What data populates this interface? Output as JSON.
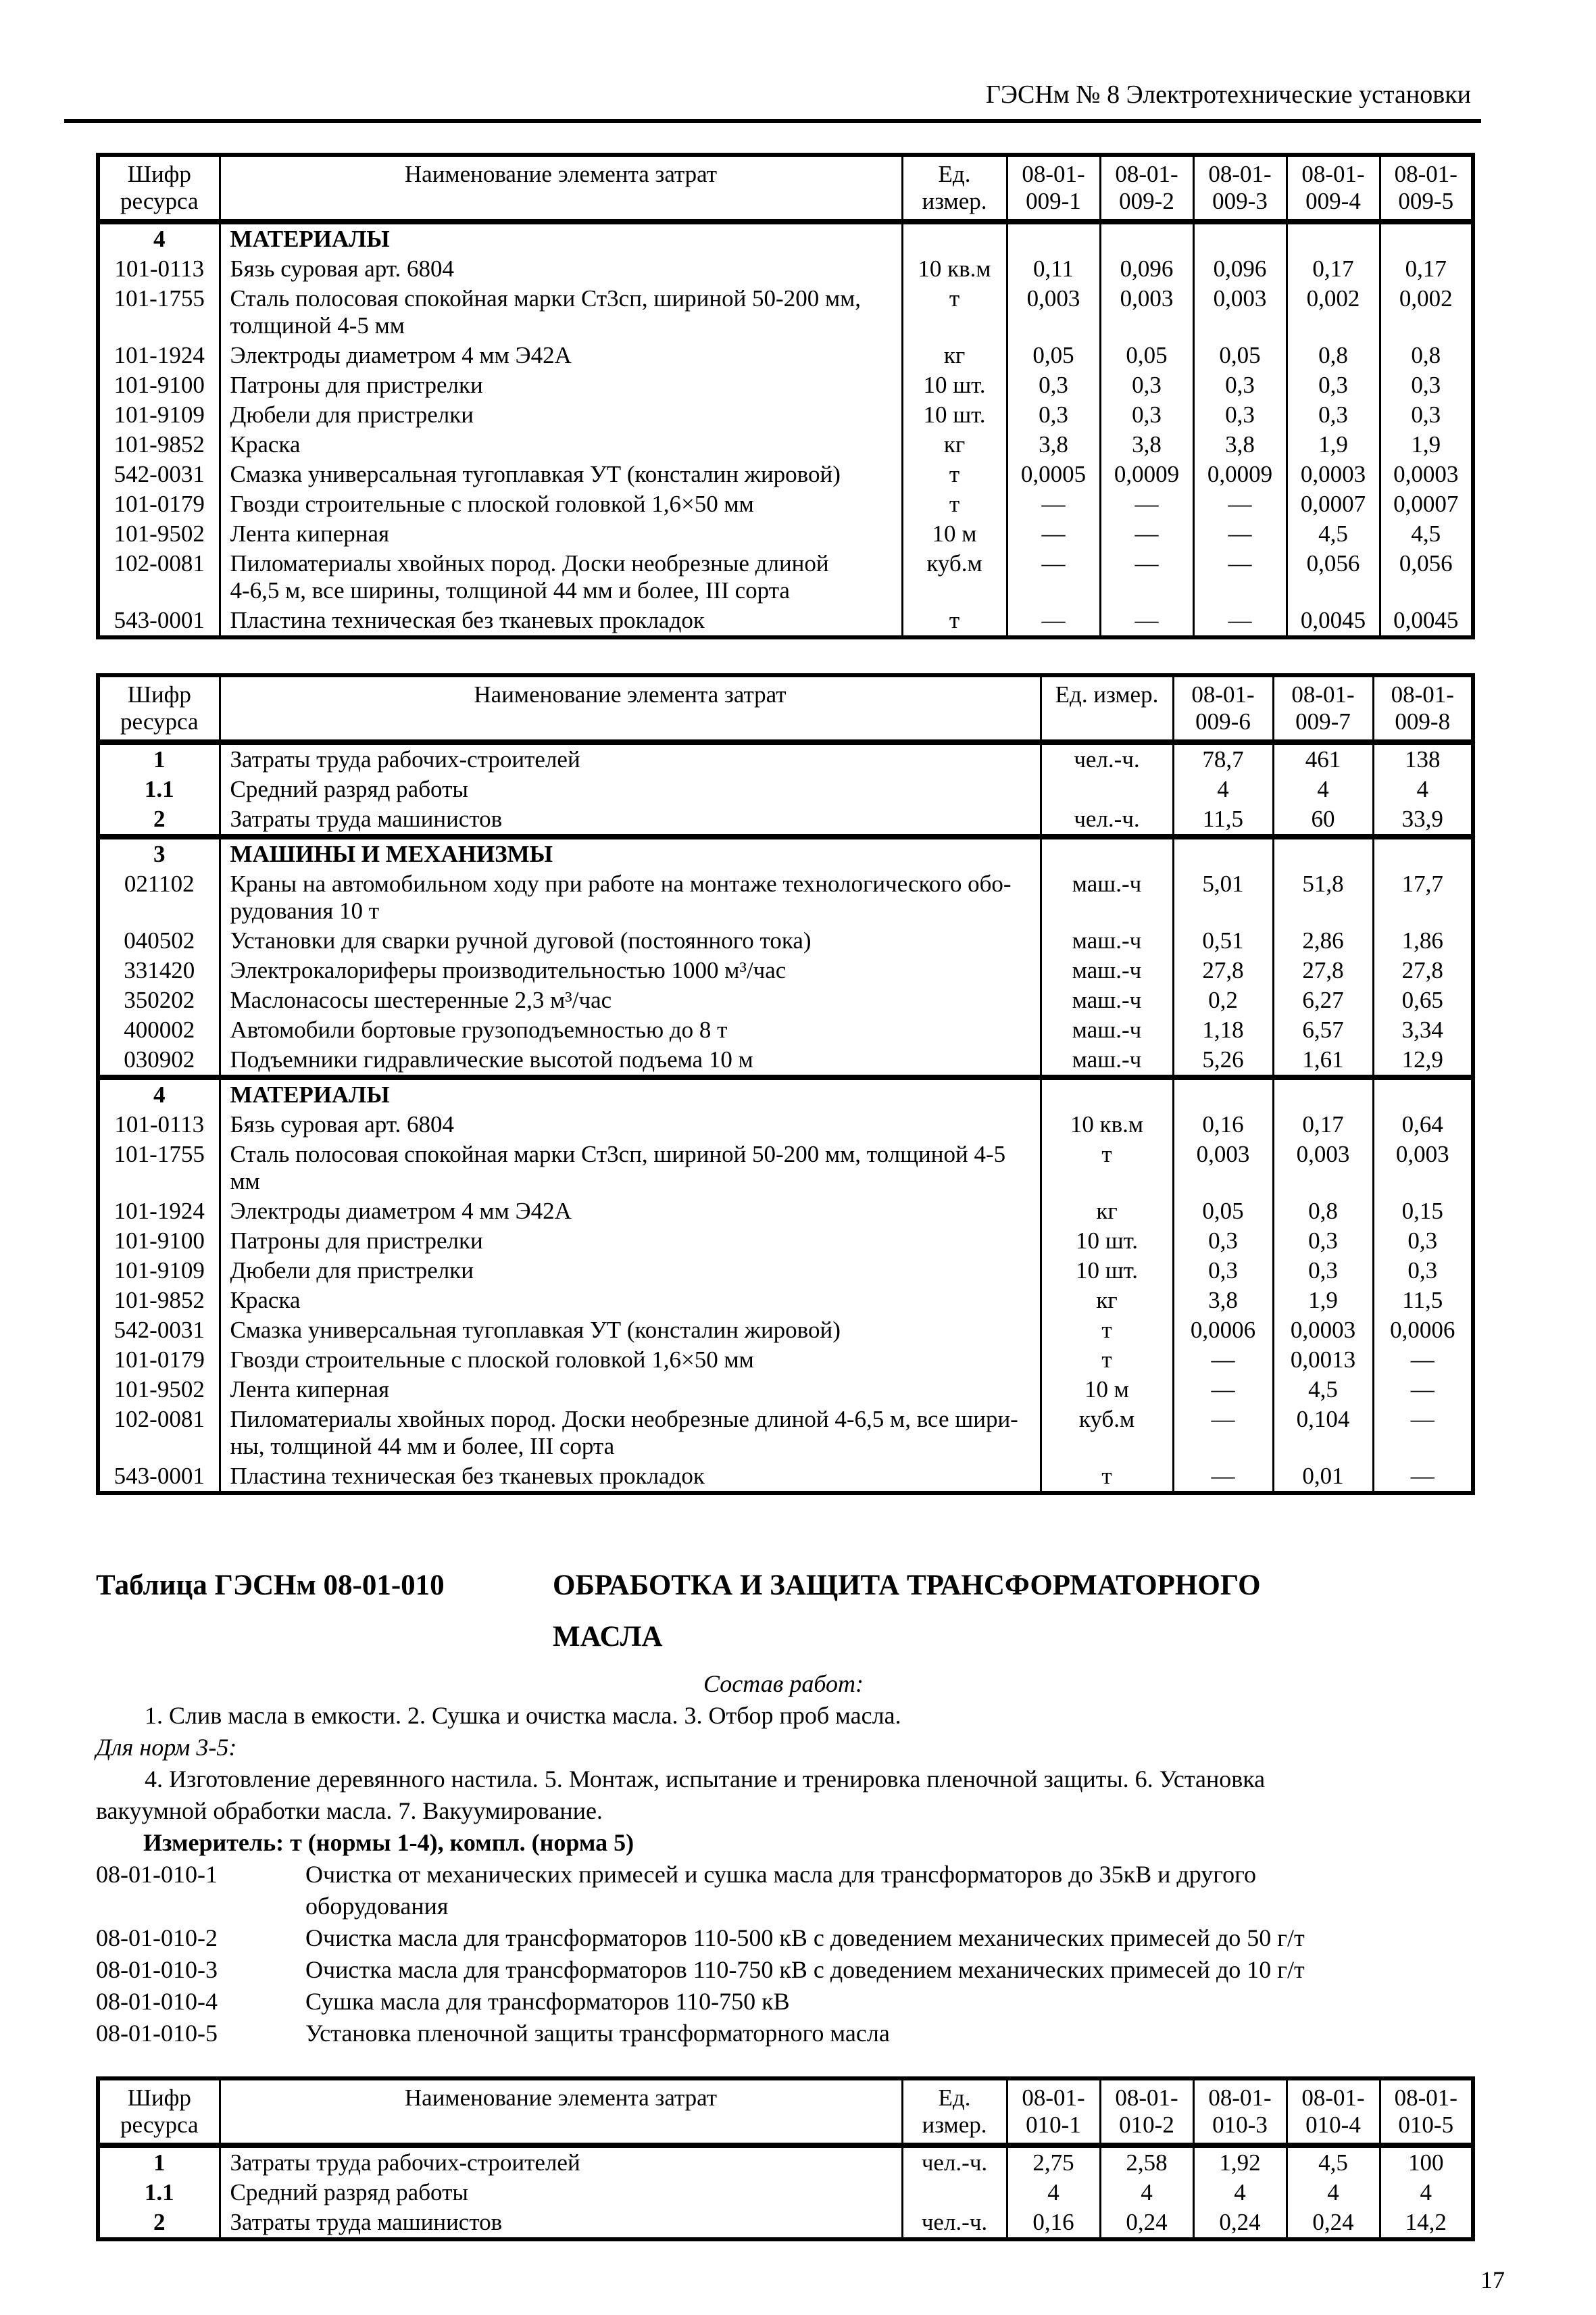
{
  "colors": {
    "ink": "#000000",
    "paper": "#ffffff"
  },
  "header": {
    "title": "ГЭСНм № 8 Электротехнические установки"
  },
  "page_number": "17",
  "tables": [
    {
      "head": {
        "code": "Шифр\nресурса",
        "name": "Наименование элемента затрат",
        "unit": "Ед. измер.",
        "norms": [
          "08-01-\n009-1",
          "08-01-\n009-2",
          "08-01-\n009-3",
          "08-01-\n009-4",
          "08-01-\n009-5"
        ]
      },
      "rows": [
        {
          "section": true,
          "code": "4",
          "name": "МАТЕРИАЛЫ"
        },
        {
          "code": "101-0113",
          "name": "Бязь суровая арт. 6804",
          "unit": "10 кв.м",
          "values": [
            "0,11",
            "0,096",
            "0,096",
            "0,17",
            "0,17"
          ]
        },
        {
          "code": "101-1755",
          "name": "Сталь полосовая спокойная марки Ст3сп, шириной 50-200 мм,\nтолщиной 4-5 мм",
          "unit": "т",
          "values": [
            "0,003",
            "0,003",
            "0,003",
            "0,002",
            "0,002"
          ]
        },
        {
          "code": "101-1924",
          "name": "Электроды диаметром 4 мм Э42А",
          "unit": "кг",
          "values": [
            "0,05",
            "0,05",
            "0,05",
            "0,8",
            "0,8"
          ]
        },
        {
          "code": "101-9100",
          "name": "Патроны для пристрелки",
          "unit": "10 шт.",
          "values": [
            "0,3",
            "0,3",
            "0,3",
            "0,3",
            "0,3"
          ]
        },
        {
          "code": "101-9109",
          "name": "Дюбели для пристрелки",
          "unit": "10 шт.",
          "values": [
            "0,3",
            "0,3",
            "0,3",
            "0,3",
            "0,3"
          ]
        },
        {
          "code": "101-9852",
          "name": "Краска",
          "unit": "кг",
          "values": [
            "3,8",
            "3,8",
            "3,8",
            "1,9",
            "1,9"
          ]
        },
        {
          "code": "542-0031",
          "name": "Смазка универсальная тугоплавкая УТ (консталин жировой)",
          "unit": "т",
          "values": [
            "0,0005",
            "0,0009",
            "0,0009",
            "0,0003",
            "0,0003"
          ]
        },
        {
          "code": "101-0179",
          "name": "Гвозди строительные с плоской головкой 1,6×50 мм",
          "unit": "т",
          "values": [
            "—",
            "—",
            "—",
            "0,0007",
            "0,0007"
          ]
        },
        {
          "code": "101-9502",
          "name": "Лента киперная",
          "unit": "10 м",
          "values": [
            "—",
            "—",
            "—",
            "4,5",
            "4,5"
          ]
        },
        {
          "code": "102-0081",
          "name": "Пиломатериалы хвойных пород. Доски необрезные длиной\n4-6,5 м, все ширины, толщиной 44 мм и более, III сорта",
          "unit": "куб.м",
          "values": [
            "—",
            "—",
            "—",
            "0,056",
            "0,056"
          ]
        },
        {
          "code": "543-0001",
          "name": "Пластина техническая без тканевых прокладок",
          "unit": "т",
          "values": [
            "—",
            "—",
            "—",
            "0,0045",
            "0,0045"
          ]
        }
      ]
    },
    {
      "head": {
        "code": "Шифр\nресурса",
        "name": "Наименование элемента затрат",
        "unit": "Ед. измер.",
        "norms": [
          "08-01-\n009-6",
          "08-01-\n009-7",
          "08-01-\n009-8"
        ]
      },
      "rows": [
        {
          "bold": true,
          "code": "1",
          "name": "Затраты труда рабочих-строителей",
          "unit": "чел.-ч.",
          "values": [
            "78,7",
            "461",
            "138"
          ]
        },
        {
          "bold": true,
          "code": "1.1",
          "name": "Средний разряд работы",
          "unit": "",
          "values": [
            "4",
            "4",
            "4"
          ]
        },
        {
          "bold": true,
          "code": "2",
          "name": "Затраты труда машинистов",
          "unit": "чел.-ч.",
          "values": [
            "11,5",
            "60",
            "33,9"
          ]
        },
        {
          "section": true,
          "sep": true,
          "code": "3",
          "name": "МАШИНЫ И МЕХАНИЗМЫ"
        },
        {
          "code": "021102",
          "name": "Краны на автомобильном ходу при работе на монтаже технологического обо-\nрудования 10 т",
          "unit": "маш.-ч",
          "values": [
            "5,01",
            "51,8",
            "17,7"
          ]
        },
        {
          "code": "040502",
          "name": "Установки для сварки ручной дуговой (постоянного тока)",
          "unit": "маш.-ч",
          "values": [
            "0,51",
            "2,86",
            "1,86"
          ]
        },
        {
          "code": "331420",
          "name": "Электрокалориферы производительностью 1000 м³/час",
          "unit": "маш.-ч",
          "values": [
            "27,8",
            "27,8",
            "27,8"
          ]
        },
        {
          "code": "350202",
          "name": "Маслонасосы шестеренные 2,3 м³/час",
          "unit": "маш.-ч",
          "values": [
            "0,2",
            "6,27",
            "0,65"
          ]
        },
        {
          "code": "400002",
          "name": "Автомобили бортовые грузоподъемностью до 8 т",
          "unit": "маш.-ч",
          "values": [
            "1,18",
            "6,57",
            "3,34"
          ]
        },
        {
          "code": "030902",
          "name": "Подъемники гидравлические высотой подъема 10 м",
          "unit": "маш.-ч",
          "values": [
            "5,26",
            "1,61",
            "12,9"
          ]
        },
        {
          "section": true,
          "sep": true,
          "code": "4",
          "name": "МАТЕРИАЛЫ"
        },
        {
          "code": "101-0113",
          "name": "Бязь суровая арт. 6804",
          "unit": "10 кв.м",
          "values": [
            "0,16",
            "0,17",
            "0,64"
          ]
        },
        {
          "code": "101-1755",
          "name": "Сталь полосовая спокойная марки Ст3сп, шириной 50-200 мм, толщиной 4-5 мм",
          "unit": "т",
          "values": [
            "0,003",
            "0,003",
            "0,003"
          ]
        },
        {
          "code": "101-1924",
          "name": "Электроды диаметром 4 мм Э42А",
          "unit": "кг",
          "values": [
            "0,05",
            "0,8",
            "0,15"
          ]
        },
        {
          "code": "101-9100",
          "name": "Патроны для пристрелки",
          "unit": "10 шт.",
          "values": [
            "0,3",
            "0,3",
            "0,3"
          ]
        },
        {
          "code": "101-9109",
          "name": "Дюбели для пристрелки",
          "unit": "10 шт.",
          "values": [
            "0,3",
            "0,3",
            "0,3"
          ]
        },
        {
          "code": "101-9852",
          "name": "Краска",
          "unit": "кг",
          "values": [
            "3,8",
            "1,9",
            "11,5"
          ]
        },
        {
          "code": "542-0031",
          "name": "Смазка универсальная тугоплавкая УТ (консталин жировой)",
          "unit": "т",
          "values": [
            "0,0006",
            "0,0003",
            "0,0006"
          ]
        },
        {
          "code": "101-0179",
          "name": "Гвозди строительные с плоской головкой 1,6×50 мм",
          "unit": "т",
          "values": [
            "—",
            "0,0013",
            "—"
          ]
        },
        {
          "code": "101-9502",
          "name": "Лента киперная",
          "unit": "10 м",
          "values": [
            "—",
            "4,5",
            "—"
          ]
        },
        {
          "code": "102-0081",
          "name": "Пиломатериалы хвойных пород. Доски необрезные длиной 4-6,5 м, все шири-\nны, толщиной 44 мм и более, III сорта",
          "unit": "куб.м",
          "values": [
            "—",
            "0,104",
            "—"
          ]
        },
        {
          "code": "543-0001",
          "name": "Пластина техническая без тканевых прокладок",
          "unit": "т",
          "values": [
            "—",
            "0,01",
            "—"
          ]
        }
      ]
    },
    {
      "head": {
        "code": "Шифр\nресурса",
        "name": "Наименование элемента затрат",
        "unit": "Ед. измер.",
        "norms": [
          "08-01-\n010-1",
          "08-01-\n010-2",
          "08-01-\n010-3",
          "08-01-\n010-4",
          "08-01-\n010-5"
        ]
      },
      "rows": [
        {
          "bold": true,
          "code": "1",
          "name": "Затраты труда рабочих-строителей",
          "unit": "чел.-ч.",
          "values": [
            "2,75",
            "2,58",
            "1,92",
            "4,5",
            "100"
          ]
        },
        {
          "bold": true,
          "code": "1.1",
          "name": "Средний разряд работы",
          "unit": "",
          "values": [
            "4",
            "4",
            "4",
            "4",
            "4"
          ]
        },
        {
          "bold": true,
          "code": "2",
          "name": "Затраты труда машинистов",
          "unit": "чел.-ч.",
          "values": [
            "0,16",
            "0,24",
            "0,24",
            "0,24",
            "14,2"
          ]
        }
      ]
    }
  ],
  "section_010": {
    "label": "Таблица ГЭСНм 08-01-010",
    "title_line1": "ОБРАБОТКА И ЗАЩИТА ТРАНСФОРМАТОРНОГО",
    "title_line2": "МАСЛА",
    "sostav_heading": "Состав работ:",
    "sostav_line": "1. Слив масла в емкости. 2. Сушка и очистка масла. 3. Отбор проб масла.",
    "for_norms_label": "Для норм 3-5:",
    "for_norms_text": "4. Изготовление деревянного настила. 5. Монтаж, испытание и тренировка пленочной защиты. 6. Установка\nвакуумной обработки масла. 7. Вакуумирование.",
    "measurer": "Измеритель: т (нормы 1-4), компл. (норма 5)",
    "norm_defs": [
      {
        "code": "08-01-010-1",
        "text": "Очистка от механических примесей и сушка масла для трансформаторов до 35кВ и другого\nоборудования"
      },
      {
        "code": "08-01-010-2",
        "text": "Очистка масла для трансформаторов 110-500 кВ с доведением механических примесей до 50 г/т"
      },
      {
        "code": "08-01-010-3",
        "text": "Очистка масла для трансформаторов 110-750 кВ с доведением механических примесей до 10 г/т"
      },
      {
        "code": "08-01-010-4",
        "text": "Сушка масла для трансформаторов 110-750 кВ"
      },
      {
        "code": "08-01-010-5",
        "text": "Установка пленочной защиты трансформаторного масла"
      }
    ]
  }
}
